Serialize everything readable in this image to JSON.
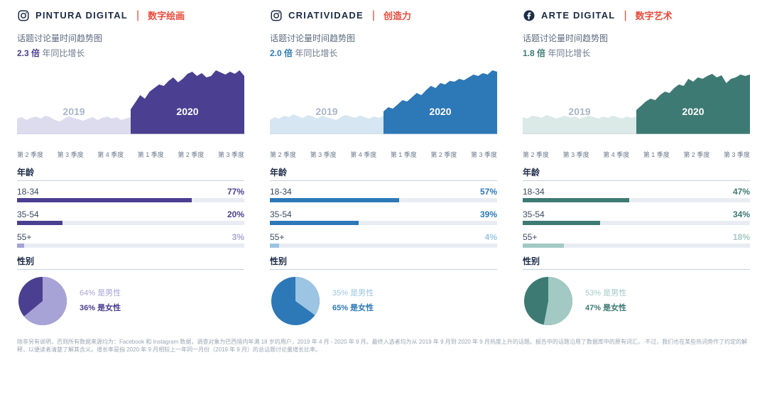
{
  "footnote": "除非另有说明，否则所有数据来源均为：Facebook 和 Instagram 数据，调查对象为巴西境内年满 18 岁的用户，2019 年 4 月 - 2020 年 9 月。最终入选者均为从 2019 年 9 月到 2020 年 9 月热度上升的话题。报告中的话题沿用了数据库中的原有词汇。\n不过，我们也在某些热词旁作了约定的解释，以便读者清楚了解其含义。增长率是指 2020 年 9 月相较上一年同一月份（2019 年 9 月）的总话题讨论量增长比率。",
  "common": {
    "trend_label": "话题讨论量时间趋势图",
    "growth_suffix": "年同比增长",
    "age_label": "年龄",
    "gender_label": "性别",
    "male_suffix": "是男性",
    "female_suffix": "是女性",
    "year_2019": "2019",
    "year_2020": "2020",
    "quarters": [
      "第 2 季度",
      "第 3 季度",
      "第 4 季度",
      "第 1 季度",
      "第 2 季度",
      "第 3 季度"
    ]
  },
  "panels": [
    {
      "platform": "instagram",
      "title_en": "PINTURA DIGITAL",
      "title_zh": "数字绘画",
      "growth_mult": "2.3 倍",
      "colors": {
        "primary": "#4b3f91",
        "light": "#dcdcee",
        "mid": "#a8a3d6",
        "male_text": "#a8a3d6",
        "female_text": "#4b3f91"
      },
      "trend_2019": [
        22,
        24,
        20,
        23,
        25,
        22,
        26,
        24,
        20,
        18,
        22,
        25,
        23,
        21,
        19,
        22,
        24,
        20,
        23,
        25,
        22,
        24,
        20,
        22,
        24
      ],
      "trend_2020": [
        35,
        45,
        55,
        50,
        60,
        65,
        70,
        68,
        75,
        80,
        73,
        78,
        85,
        88,
        82,
        86,
        80,
        82,
        90,
        87,
        84,
        88,
        85,
        90,
        82
      ],
      "ylim": [
        0,
        100
      ],
      "ages": [
        {
          "label": "18-34",
          "pct": 77
        },
        {
          "label": "35-54",
          "pct": 20
        },
        {
          "label": "55+",
          "pct": 3
        }
      ],
      "gender": {
        "male": 64,
        "female": 36
      }
    },
    {
      "platform": "instagram",
      "title_en": "CRIATIVIDADE",
      "title_zh": "创造力",
      "growth_mult": "2.0 倍",
      "colors": {
        "primary": "#2d78b7",
        "light": "#d6e6f2",
        "mid": "#9bc5e3",
        "male_text": "#9bc5e3",
        "female_text": "#2d78b7"
      },
      "trend_2019": [
        20,
        24,
        22,
        26,
        24,
        28,
        25,
        23,
        27,
        25,
        22,
        26,
        24,
        22,
        20,
        24,
        27,
        25,
        23,
        26,
        24,
        22,
        25,
        23,
        26
      ],
      "trend_2020": [
        32,
        38,
        36,
        42,
        48,
        46,
        52,
        58,
        55,
        62,
        68,
        65,
        72,
        70,
        75,
        74,
        78,
        76,
        80,
        84,
        82,
        86,
        84,
        90,
        88
      ],
      "ylim": [
        0,
        100
      ],
      "ages": [
        {
          "label": "18-34",
          "pct": 57
        },
        {
          "label": "35-54",
          "pct": 39
        },
        {
          "label": "55+",
          "pct": 4
        }
      ],
      "gender": {
        "male": 35,
        "female": 65
      }
    },
    {
      "platform": "facebook",
      "title_en": "ARTE DIGITAL",
      "title_zh": "数字艺术",
      "growth_mult": "1.8 倍",
      "colors": {
        "primary": "#3d7a73",
        "light": "#dbe9e7",
        "mid": "#a3c9c4",
        "male_text": "#a3c9c4",
        "female_text": "#3d7a73"
      },
      "trend_2019": [
        24,
        22,
        26,
        25,
        23,
        27,
        25,
        22,
        24,
        26,
        23,
        25,
        22,
        24,
        26,
        24,
        22,
        25,
        23,
        26,
        24,
        22,
        25,
        23,
        25
      ],
      "trend_2020": [
        34,
        40,
        46,
        50,
        48,
        55,
        60,
        58,
        65,
        70,
        68,
        78,
        74,
        80,
        78,
        82,
        85,
        80,
        83,
        72,
        78,
        80,
        84,
        82,
        84
      ],
      "ylim": [
        0,
        100
      ],
      "ages": [
        {
          "label": "18-34",
          "pct": 47
        },
        {
          "label": "35-54",
          "pct": 34
        },
        {
          "label": "55+",
          "pct": 18
        }
      ],
      "gender": {
        "male": 53,
        "female": 47
      }
    }
  ]
}
